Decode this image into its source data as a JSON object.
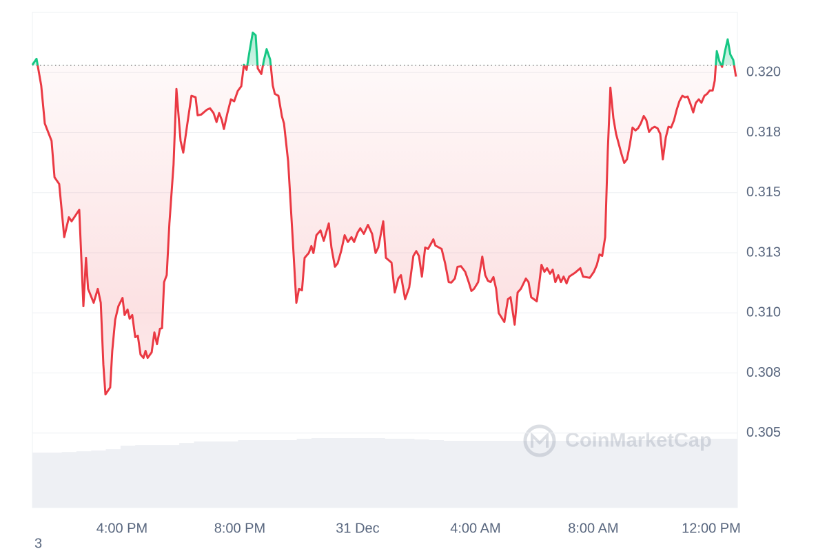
{
  "chart_data": {
    "type": "line",
    "x": [
      12.96,
      13.1,
      13.26,
      13.38,
      13.61,
      13.71,
      13.87,
      14.04,
      14.2,
      14.29,
      14.55,
      14.69,
      14.78,
      14.85,
      15.04,
      15.18,
      15.28,
      15.37,
      15.44,
      15.6,
      15.67,
      15.77,
      15.88,
      16.02,
      16.09,
      16.19,
      16.26,
      16.35,
      16.45,
      16.54,
      16.63,
      16.73,
      16.8,
      16.87,
      17.01,
      17.1,
      17.19,
      17.29,
      17.36,
      17.43,
      17.52,
      17.61,
      17.75,
      17.85,
      17.99,
      18.08,
      18.22,
      18.36,
      18.5,
      18.57,
      18.69,
      18.88,
      18.99,
      19.11,
      19.21,
      19.3,
      19.39,
      19.46,
      19.58,
      19.7,
      19.81,
      19.93,
      20.05,
      20.14,
      20.23,
      20.33,
      20.44,
      20.54,
      20.61,
      20.73,
      20.82,
      20.91,
      21.03,
      21.12,
      21.19,
      21.31,
      21.43,
      21.5,
      21.64,
      21.8,
      21.92,
      22.01,
      22.11,
      22.2,
      22.34,
      22.43,
      22.5,
      22.6,
      22.74,
      22.85,
      23.02,
      23.11,
      23.23,
      23.32,
      23.44,
      23.56,
      23.67,
      23.79,
      23.88,
      24.0,
      24.09,
      24.21,
      24.35,
      24.49,
      24.61,
      24.7,
      24.87,
      24.96,
      25.15,
      25.26,
      25.38,
      25.47,
      25.61,
      25.75,
      25.89,
      25.99,
      26.08,
      26.18,
      26.29,
      26.39,
      26.48,
      26.57,
      26.64,
      26.85,
      26.97,
      27.09,
      27.18,
      27.3,
      27.39,
      27.51,
      27.65,
      27.77,
      27.86,
      27.95,
      28.09,
      28.23,
      28.33,
      28.42,
      28.51,
      28.61,
      28.7,
      28.79,
      28.98,
      29.1,
      29.19,
      29.33,
      29.43,
      29.54,
      29.71,
      29.8,
      29.89,
      30.08,
      30.17,
      30.24,
      30.34,
      30.43,
      30.53,
      30.62,
      30.71,
      30.81,
      30.9,
      30.99,
      31.09,
      31.18,
      31.37,
      31.56,
      31.65,
      31.88,
      32.02,
      32.12,
      32.21,
      32.3,
      32.4,
      32.49,
      32.58,
      32.68,
      32.77,
      32.96,
      33.05,
      33.14,
      33.24,
      33.33,
      33.43,
      33.52,
      33.61,
      33.71,
      33.8,
      33.89,
      33.99,
      34.08,
      34.18,
      34.27,
      34.36,
      34.46,
      34.55,
      34.64,
      34.74,
      34.83,
      34.92,
      35.02,
      35.11,
      35.2,
      35.3,
      35.39,
      35.48,
      35.58,
      35.67,
      35.77,
      35.86,
      35.95,
      36.05,
      36.12,
      36.19,
      36.28,
      36.37,
      36.47,
      36.56,
      36.65,
      36.75,
      36.84
    ],
    "values": [
      0.32032,
      0.32057,
      0.31946,
      0.31788,
      0.31716,
      0.31564,
      0.31536,
      0.31315,
      0.31398,
      0.31381,
      0.31429,
      0.31028,
      0.31229,
      0.311,
      0.31042,
      0.311,
      0.31042,
      0.30784,
      0.30661,
      0.3069,
      0.30842,
      0.30971,
      0.31028,
      0.31062,
      0.30991,
      0.31014,
      0.30976,
      0.30991,
      0.30899,
      0.30905,
      0.30827,
      0.30813,
      0.30842,
      0.30813,
      0.30836,
      0.30919,
      0.3087,
      0.30934,
      0.30936,
      0.31128,
      0.31157,
      0.31372,
      0.31616,
      0.31931,
      0.31716,
      0.31667,
      0.31788,
      0.31903,
      0.31897,
      0.31822,
      0.31825,
      0.31845,
      0.31851,
      0.31831,
      0.31794,
      0.31831,
      0.31802,
      0.31765,
      0.31831,
      0.31888,
      0.3188,
      0.31923,
      0.31943,
      0.32032,
      0.32011,
      0.32089,
      0.32166,
      0.32155,
      0.32017,
      0.31994,
      0.32052,
      0.32097,
      0.32054,
      0.31946,
      0.31911,
      0.31903,
      0.31817,
      0.31788,
      0.3163,
      0.313,
      0.31042,
      0.311,
      0.31094,
      0.31229,
      0.31249,
      0.31278,
      0.31249,
      0.31323,
      0.31343,
      0.313,
      0.31372,
      0.31272,
      0.31192,
      0.31206,
      0.31257,
      0.31323,
      0.31295,
      0.31315,
      0.31295,
      0.31335,
      0.31352,
      0.31329,
      0.31366,
      0.31329,
      0.31249,
      0.31272,
      0.31381,
      0.31229,
      0.31209,
      0.31085,
      0.31143,
      0.31157,
      0.31057,
      0.31106,
      0.31237,
      0.31257,
      0.31237,
      0.31151,
      0.31272,
      0.31266,
      0.31286,
      0.31306,
      0.3128,
      0.31266,
      0.31206,
      0.31128,
      0.31126,
      0.31143,
      0.31192,
      0.31194,
      0.31171,
      0.31128,
      0.31091,
      0.311,
      0.31128,
      0.31234,
      0.31157,
      0.31134,
      0.31128,
      0.31149,
      0.311,
      0.30999,
      0.30962,
      0.31057,
      0.31065,
      0.30951,
      0.31085,
      0.311,
      0.31143,
      0.31128,
      0.31065,
      0.31048,
      0.31128,
      0.312,
      0.31171,
      0.31186,
      0.31163,
      0.3118,
      0.31128,
      0.31157,
      0.31128,
      0.31151,
      0.31123,
      0.31151,
      0.31166,
      0.31186,
      0.31151,
      0.31146,
      0.31171,
      0.312,
      0.31243,
      0.31237,
      0.31315,
      0.31673,
      0.31937,
      0.31811,
      0.31745,
      0.31659,
      0.31624,
      0.31639,
      0.31702,
      0.31771,
      0.31759,
      0.31768,
      0.31788,
      0.31819,
      0.31802,
      0.31753,
      0.31768,
      0.31774,
      0.31768,
      0.31745,
      0.31639,
      0.3173,
      0.31774,
      0.31771,
      0.31802,
      0.31845,
      0.3188,
      0.31903,
      0.31897,
      0.319,
      0.31868,
      0.31834,
      0.31874,
      0.31888,
      0.31874,
      0.31903,
      0.31911,
      0.31925,
      0.31925,
      0.31966,
      0.32089,
      0.32046,
      0.32023,
      0.32089,
      0.32138,
      0.32075,
      0.32052,
      0.31983
    ],
    "baseline": 0.3203,
    "color_above": "#16c784",
    "color_below": "#ea3943",
    "xlim": [
      12.96,
      36.89
    ],
    "xticks": [
      {
        "value": 16,
        "label": "4:00 PM"
      },
      {
        "value": 20,
        "label": "8:00 PM"
      },
      {
        "value": 24,
        "label": "31 Dec"
      },
      {
        "value": 28,
        "label": "4:00 AM"
      },
      {
        "value": 32,
        "label": "8:00 AM"
      },
      {
        "value": 36,
        "label": "12:00 PM"
      }
    ],
    "ylim": [
      0.3019,
      0.3225
    ],
    "yticks": [
      {
        "value": 0.32,
        "label": "0.320"
      },
      {
        "value": 0.3175,
        "label": "0.318"
      },
      {
        "value": 0.315,
        "label": "0.315"
      },
      {
        "value": 0.3125,
        "label": "0.313"
      },
      {
        "value": 0.31,
        "label": "0.310"
      },
      {
        "value": 0.3075,
        "label": "0.308"
      },
      {
        "value": 0.305,
        "label": "0.305"
      }
    ],
    "grid": true,
    "volume": {
      "values": [
        79,
        79,
        80,
        81,
        82,
        84,
        89,
        90,
        90,
        90,
        93,
        95,
        95,
        95,
        97,
        97,
        97,
        97,
        99,
        100,
        100,
        100,
        100,
        100,
        99,
        99,
        98,
        97,
        96,
        96,
        96,
        96,
        96,
        96,
        96,
        96,
        96,
        96,
        96,
        96,
        96,
        97,
        97,
        98,
        98,
        99,
        99,
        99
      ],
      "vlim": [
        0,
        100
      ],
      "color": "#eef0f4"
    },
    "watermark": "CoinMarketCap",
    "footnote": "3"
  }
}
